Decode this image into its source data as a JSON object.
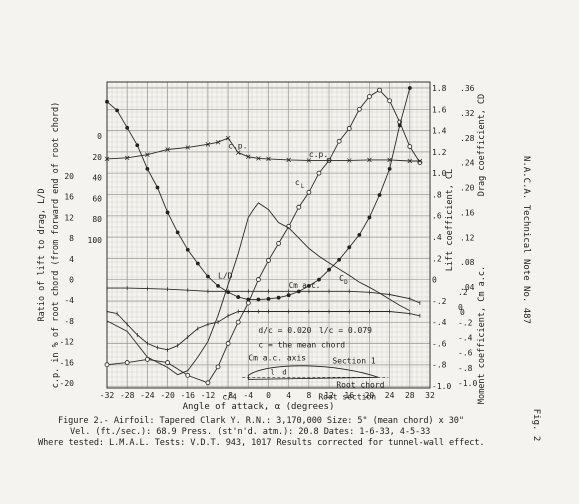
{
  "header_side": "N.A.C.A. Technical Note No. 487",
  "fig_side": "Fig. 2",
  "caption": {
    "line1": "Figure 2.- Airfoil: Tapered Clark Y.   R.N.: 3,170,000     Size: 5\" (mean chord) x 30\"",
    "line2": "Vel. (ft./sec.): 68.9    Press. (st'n'd. atm.): 20.8    Dates: 1-6-33, 4-5-33",
    "line3": "Where tested: L.M.A.L.  Tests: V.D.T. 943, 1017   Results corrected for tunnel-wall effect."
  },
  "chart_data": {
    "type": "line",
    "xlabel": "Angle of attack, α (degrees)",
    "x_ticks": [
      "-32",
      "-28",
      "-24",
      "-20",
      "-16",
      "-12",
      "-8",
      "-4",
      "0",
      "4",
      "8",
      "12",
      "16",
      "20",
      "24",
      "28",
      "32"
    ],
    "xlim": [
      -32,
      32
    ],
    "axes": {
      "cl": {
        "label": "Lift coefficient, CL",
        "ticks": [
          "1.8",
          "1.6",
          "1.4",
          "1.2",
          "1.0",
          ".8",
          ".6",
          ".4",
          ".2",
          "0",
          "-.2",
          "-.4",
          "-.6",
          "-.8",
          "-1.0"
        ],
        "range": [
          -1.0,
          1.8
        ]
      },
      "cd": {
        "label": "Drag coefficient, CD",
        "ticks": [
          ".36",
          ".32",
          ".28",
          ".24",
          ".20",
          ".16",
          ".12",
          ".08",
          ".04",
          "0"
        ],
        "range": [
          0,
          0.36
        ]
      },
      "cm": {
        "label": "Moment coefficient, Cm a.c.",
        "ticks": [
          ".2",
          "0",
          "-.2",
          "-.4",
          "-.6",
          "-.8",
          "-1.0"
        ],
        "range": [
          -1.0,
          0.2
        ]
      },
      "ld": {
        "label": "Ratio of lift to drag, L/D",
        "ticks": [
          "20",
          "16",
          "12",
          "8",
          "4",
          "0",
          "-4",
          "-8",
          "-12",
          "-16",
          "-20"
        ],
        "range": [
          -20,
          20
        ]
      },
      "cp": {
        "label": "c.p. in % of root chord (from forward end of root chord)",
        "ticks": [
          "0",
          "20",
          "40",
          "60",
          "80",
          "100"
        ],
        "range": [
          0,
          100
        ]
      }
    },
    "series": [
      {
        "name": "CL",
        "label": "CL",
        "x": [
          -32,
          -28,
          -24,
          -20,
          -16,
          -12,
          -10,
          -8,
          -6,
          -4,
          -2,
          0,
          2,
          4,
          6,
          8,
          10,
          12,
          14,
          16,
          18,
          20,
          22,
          24,
          26,
          28,
          30
        ],
        "y": [
          -0.8,
          -0.78,
          -0.75,
          -0.78,
          -0.9,
          -0.97,
          -0.82,
          -0.6,
          -0.4,
          -0.22,
          0.0,
          0.18,
          0.34,
          0.5,
          0.68,
          0.82,
          1.0,
          1.12,
          1.3,
          1.42,
          1.6,
          1.72,
          1.78,
          1.68,
          1.48,
          1.25,
          1.1
        ]
      },
      {
        "name": "CD",
        "label": "CD",
        "x": [
          -32,
          -30,
          -28,
          -26,
          -24,
          -22,
          -20,
          -18,
          -16,
          -14,
          -12,
          -10,
          -8,
          -6,
          -4,
          -2,
          0,
          2,
          4,
          6,
          8,
          10,
          12,
          14,
          16,
          18,
          20,
          22,
          24,
          26,
          28
        ],
        "y": [
          0.338,
          0.324,
          0.296,
          0.268,
          0.23,
          0.2,
          0.16,
          0.128,
          0.1,
          0.078,
          0.057,
          0.042,
          0.032,
          0.024,
          0.02,
          0.02,
          0.021,
          0.023,
          0.027,
          0.033,
          0.042,
          0.052,
          0.068,
          0.084,
          0.104,
          0.124,
          0.152,
          0.188,
          0.23,
          0.3,
          0.36
        ]
      },
      {
        "name": "L/D",
        "label": "L/D",
        "x": [
          -32,
          -28,
          -24,
          -20,
          -18,
          -16,
          -14,
          -12,
          -10,
          -8,
          -6,
          -4,
          -3,
          -2,
          0,
          2,
          4,
          6,
          8,
          10,
          12,
          14,
          16,
          18,
          20,
          22,
          24,
          26,
          28
        ],
        "y": [
          -8,
          -10,
          -15,
          -17,
          -18.4,
          -17.6,
          -15,
          -12,
          -7,
          -1,
          5,
          12,
          13.5,
          14.8,
          13.5,
          11,
          10,
          8,
          6,
          4.5,
          3.2,
          2,
          0.8,
          -0.5,
          -1.5,
          -2.6,
          -3.8,
          -5,
          -6
        ]
      },
      {
        "name": "c.p.",
        "label": "c.p.",
        "x": [
          -32,
          -28,
          -24,
          -20,
          -16,
          -12,
          -10,
          -8,
          -6,
          -4,
          -2,
          0,
          4,
          8,
          12,
          16,
          20,
          24,
          28,
          30
        ],
        "y": [
          22,
          21,
          18,
          13,
          11,
          8,
          6,
          2,
          16,
          20,
          21.5,
          22,
          23,
          23.5,
          23.5,
          23.5,
          23,
          23,
          24,
          24
        ]
      },
      {
        "name": "Cm a.c.",
        "label": "Cm a.c.",
        "x": [
          -32,
          -28,
          -24,
          -20,
          -16,
          -12,
          -8,
          -4,
          0,
          4,
          8,
          12,
          16,
          20,
          24,
          28,
          30
        ],
        "y": [
          -0.08,
          -0.08,
          -0.085,
          -0.09,
          -0.1,
          -0.11,
          -0.11,
          -0.11,
          -0.11,
          -0.11,
          -0.11,
          -0.11,
          -0.11,
          -0.12,
          -0.14,
          -0.18,
          -0.22
        ]
      },
      {
        "name": "faired",
        "label": "",
        "x": [
          -32,
          -30,
          -28,
          -26,
          -24,
          -22,
          -20,
          -18,
          -16,
          -14,
          -12,
          -10,
          -8,
          -6,
          -4,
          -2,
          0,
          4,
          8,
          12,
          16,
          20,
          24,
          28,
          30
        ],
        "y": [
          -0.3,
          -0.32,
          -0.42,
          -0.52,
          -0.6,
          -0.64,
          -0.66,
          -0.62,
          -0.54,
          -0.46,
          -0.42,
          -0.4,
          -0.34,
          -0.3,
          -0.3,
          -0.3,
          -0.3,
          -0.3,
          -0.3,
          -0.3,
          -0.3,
          -0.3,
          -0.3,
          -0.32,
          -0.34
        ]
      }
    ],
    "annotations": {
      "cma_label": "Cm a.c.",
      "cma_axis": "Cm a.c. axis",
      "eq1_left_num": "d",
      "eq1_left_den": "c",
      "eq1_left_val": "= 0.020",
      "eq1_right_num": "l",
      "eq1_right_den": "c",
      "eq1_right_val": "= 0.079",
      "chord_note": "c = the mean chord",
      "section1": "Section 1",
      "root_chord": "Root chord",
      "root_section": "Root section",
      "c4": "c/4",
      "l": "l",
      "d": "d"
    }
  }
}
